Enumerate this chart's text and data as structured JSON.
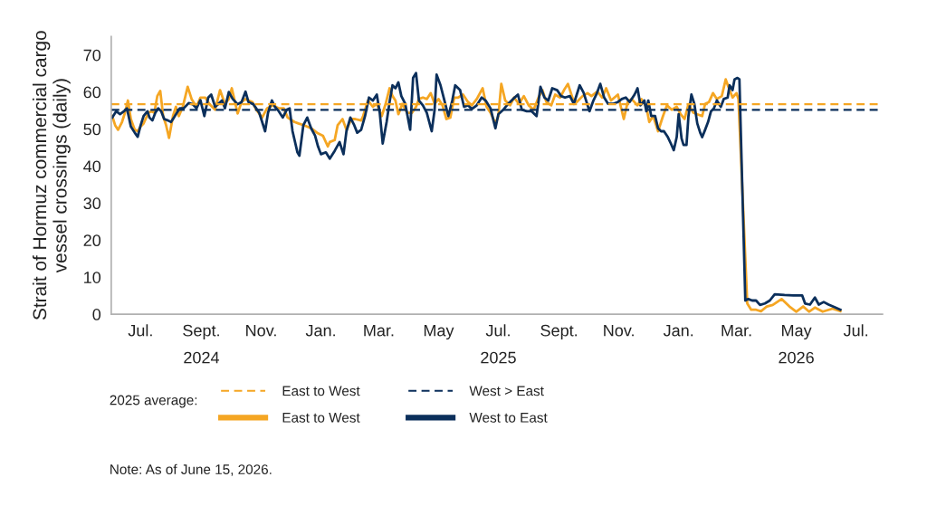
{
  "chart_data": {
    "type": "line",
    "ylabel": "Strait of Hormuz commercial cargo\nvessel crossings (daily)",
    "xlim": [
      "2024-06-01",
      "2026-07-28"
    ],
    "xticks": [
      {
        "value": "2024-07-01",
        "label": "Jul."
      },
      {
        "value": "2024-09-01",
        "label": "Sept.\n2024"
      },
      {
        "value": "2024-11-01",
        "label": "Nov."
      },
      {
        "value": "2025-01-01",
        "label": "Jan."
      },
      {
        "value": "2025-03-01",
        "label": "Mar."
      },
      {
        "value": "2025-05-01",
        "label": "May"
      },
      {
        "value": "2025-07-01",
        "label": "Jul.\n2025"
      },
      {
        "value": "2025-09-01",
        "label": "Sept."
      },
      {
        "value": "2025-11-01",
        "label": "Nov."
      },
      {
        "value": "2026-01-01",
        "label": "Jan."
      },
      {
        "value": "2026-03-01",
        "label": "Mar."
      },
      {
        "value": "2026-05-01",
        "label": "May\n2026"
      },
      {
        "value": "2026-07-01",
        "label": "Jul."
      }
    ],
    "ylim": [
      0,
      75
    ],
    "yticks": [
      0,
      10,
      20,
      30,
      40,
      50,
      60,
      70
    ],
    "line_style": "solid",
    "legend": "bottom",
    "legend_title": "2025 average:",
    "ref_lines": [
      {
        "axis": "y",
        "value": 56.7,
        "label": "East to West",
        "color": "#f5a623",
        "line_style": "dashed"
      },
      {
        "axis": "y",
        "value": 55.2,
        "label": "West > East",
        "color": "#0b2f5b",
        "line_style": "dashed"
      }
    ],
    "series": [
      {
        "name": "East to West",
        "color": "#f5a623",
        "x": [
          "2024-06-02",
          "2024-06-05",
          "2024-06-08",
          "2024-06-12",
          "2024-06-15",
          "2024-06-18",
          "2024-06-21",
          "2024-06-25",
          "2024-06-28",
          "2024-07-01",
          "2024-07-04",
          "2024-07-09",
          "2024-07-12",
          "2024-07-15",
          "2024-07-18",
          "2024-07-21",
          "2024-07-24",
          "2024-07-27",
          "2024-07-30",
          "2024-08-03",
          "2024-08-06",
          "2024-08-09",
          "2024-08-13",
          "2024-08-18",
          "2024-08-22",
          "2024-08-27",
          "2024-08-31",
          "2024-09-05",
          "2024-09-09",
          "2024-09-15",
          "2024-09-20",
          "2024-09-25",
          "2024-09-29",
          "2024-10-02",
          "2024-10-08",
          "2024-10-12",
          "2024-10-16",
          "2024-10-23",
          "2024-10-27",
          "2024-11-02",
          "2024-11-07",
          "2024-11-13",
          "2024-11-19",
          "2024-11-24",
          "2024-11-28",
          "2024-12-05",
          "2024-12-09",
          "2024-12-15",
          "2024-12-22",
          "2024-12-28",
          "2025-01-03",
          "2025-01-08",
          "2025-01-10",
          "2025-01-15",
          "2025-01-18",
          "2025-01-23",
          "2025-01-27",
          "2025-02-01",
          "2025-02-05",
          "2025-02-11",
          "2025-02-13",
          "2025-02-18",
          "2025-02-23",
          "2025-02-27",
          "2025-03-04",
          "2025-03-08",
          "2025-03-12",
          "2025-03-15",
          "2025-03-18",
          "2025-03-21",
          "2025-03-25",
          "2025-03-30",
          "2025-04-04",
          "2025-04-08",
          "2025-04-11",
          "2025-04-15",
          "2025-04-19",
          "2025-04-23",
          "2025-04-27",
          "2025-05-01",
          "2025-05-05",
          "2025-05-09",
          "2025-05-13",
          "2025-05-17",
          "2025-05-21",
          "2025-05-26",
          "2025-05-31",
          "2025-06-04",
          "2025-06-09",
          "2025-06-15",
          "2025-06-19",
          "2025-06-23",
          "2025-06-28",
          "2025-07-01",
          "2025-07-04",
          "2025-07-08",
          "2025-07-13",
          "2025-07-17",
          "2025-07-22",
          "2025-07-27",
          "2025-08-01",
          "2025-08-06",
          "2025-08-11",
          "2025-08-15",
          "2025-08-19",
          "2025-08-24",
          "2025-08-28",
          "2025-09-02",
          "2025-09-06",
          "2025-09-10",
          "2025-09-15",
          "2025-09-19",
          "2025-09-25",
          "2025-09-30",
          "2025-10-04",
          "2025-10-10",
          "2025-10-15",
          "2025-10-19",
          "2025-10-24",
          "2025-10-31",
          "2025-11-06",
          "2025-11-10",
          "2025-11-14",
          "2025-11-20",
          "2025-11-24",
          "2025-11-29",
          "2025-12-02",
          "2025-12-06",
          "2025-12-11",
          "2025-12-16",
          "2025-12-20",
          "2025-12-25",
          "2025-12-30",
          "2026-01-03",
          "2026-01-07",
          "2026-01-11",
          "2026-01-16",
          "2026-01-20",
          "2026-01-25",
          "2026-01-28",
          "2026-02-01",
          "2026-02-05",
          "2026-02-09",
          "2026-02-14",
          "2026-02-18",
          "2026-02-22",
          "2026-02-25",
          "2026-03-01",
          "2026-03-03",
          "2026-03-12",
          "2026-03-16",
          "2026-03-21",
          "2026-03-26",
          "2026-04-01",
          "2026-04-07",
          "2026-04-16",
          "2026-04-24",
          "2026-05-01",
          "2026-05-08",
          "2026-05-14",
          "2026-05-20",
          "2026-05-28",
          "2026-06-07",
          "2026-06-15"
        ],
        "values": [
          53.5,
          51,
          49.8,
          51.9,
          54.4,
          57.7,
          52.7,
          49.8,
          49.4,
          50.7,
          51.5,
          54.4,
          54.8,
          54.4,
          58.9,
          60.3,
          53.5,
          51,
          47.6,
          53.5,
          56,
          53.5,
          56,
          61.4,
          58.1,
          56,
          58.5,
          58.5,
          56.8,
          55.2,
          60.5,
          56.8,
          58.1,
          61,
          54.2,
          57.3,
          58.1,
          57.3,
          55.2,
          53.1,
          55.6,
          56.4,
          55.6,
          55.6,
          53.1,
          51.9,
          51.5,
          51,
          50.2,
          49,
          48.2,
          45.3,
          46.5,
          47,
          51,
          52.7,
          49.8,
          52.7,
          52.7,
          52.3,
          53.5,
          57.7,
          56,
          56.8,
          53.5,
          56.8,
          61,
          58.9,
          57.7,
          54,
          56.8,
          54.4,
          54.4,
          56,
          58.1,
          58.5,
          58.1,
          59.7,
          56.8,
          58.1,
          56.4,
          52.7,
          53.1,
          58.5,
          58.5,
          59.3,
          57.3,
          56.4,
          58.1,
          61,
          56,
          54.4,
          51.5,
          53.5,
          62.2,
          57.7,
          56.4,
          58.5,
          56.8,
          58.9,
          56.4,
          55.2,
          58.5,
          60.5,
          57.3,
          56.4,
          59.3,
          58.5,
          60.5,
          62.2,
          58.1,
          57.3,
          58.9,
          59.7,
          58.9,
          60.1,
          58.5,
          61,
          57.7,
          59.3,
          52.7,
          57.3,
          58.1,
          56.4,
          58.1,
          56,
          51.9,
          53.5,
          49.4,
          53.5,
          56.4,
          55.2,
          56,
          54,
          52.7,
          56.7,
          54.4,
          54,
          53.5,
          56.8,
          57.3,
          59.7,
          58.1,
          58.9,
          63.4,
          60.5,
          58.5,
          59.7,
          58.1,
          2.9,
          1.2,
          1.2,
          0.8,
          2.1,
          2.5,
          4.1,
          2.1,
          0.7,
          2.1,
          0.7,
          1.8,
          0.7,
          1.5,
          0.8
        ]
      },
      {
        "name": "West to East",
        "color": "#0b2f5b",
        "x": [
          "2024-06-02",
          "2024-06-06",
          "2024-06-10",
          "2024-06-14",
          "2024-06-17",
          "2024-06-21",
          "2024-06-25",
          "2024-06-28",
          "2024-07-01",
          "2024-07-04",
          "2024-07-08",
          "2024-07-10",
          "2024-07-13",
          "2024-07-16",
          "2024-07-19",
          "2024-07-22",
          "2024-07-25",
          "2024-07-29",
          "2024-08-01",
          "2024-08-04",
          "2024-08-07",
          "2024-08-10",
          "2024-08-14",
          "2024-08-19",
          "2024-08-23",
          "2024-08-27",
          "2024-08-31",
          "2024-09-04",
          "2024-09-08",
          "2024-09-11",
          "2024-09-15",
          "2024-09-18",
          "2024-09-22",
          "2024-09-25",
          "2024-09-29",
          "2024-10-03",
          "2024-10-08",
          "2024-10-12",
          "2024-10-16",
          "2024-10-19",
          "2024-10-24",
          "2024-10-30",
          "2024-11-05",
          "2024-11-08",
          "2024-11-12",
          "2024-11-15",
          "2024-11-19",
          "2024-11-23",
          "2024-11-27",
          "2024-11-30",
          "2024-12-03",
          "2024-12-08",
          "2024-12-10",
          "2024-12-14",
          "2024-12-18",
          "2024-12-22",
          "2024-12-26",
          "2024-12-29",
          "2025-01-01",
          "2025-01-06",
          "2025-01-10",
          "2025-01-15",
          "2025-01-20",
          "2025-01-24",
          "2025-01-27",
          "2025-01-31",
          "2025-02-04",
          "2025-02-07",
          "2025-02-11",
          "2025-02-15",
          "2025-02-19",
          "2025-02-23",
          "2025-02-27",
          "2025-03-02",
          "2025-03-05",
          "2025-03-09",
          "2025-03-12",
          "2025-03-15",
          "2025-03-18",
          "2025-03-21",
          "2025-03-24",
          "2025-03-28",
          "2025-04-02",
          "2025-04-05",
          "2025-04-08",
          "2025-04-11",
          "2025-04-15",
          "2025-04-19",
          "2025-04-24",
          "2025-04-27",
          "2025-04-29",
          "2025-05-03",
          "2025-05-07",
          "2025-05-11",
          "2025-05-15",
          "2025-05-18",
          "2025-05-23",
          "2025-05-27",
          "2025-05-31",
          "2025-06-04",
          "2025-06-09",
          "2025-06-14",
          "2025-06-18",
          "2025-06-23",
          "2025-06-28",
          "2025-07-01",
          "2025-07-06",
          "2025-07-11",
          "2025-07-16",
          "2025-07-21",
          "2025-07-25",
          "2025-07-30",
          "2025-08-04",
          "2025-08-09",
          "2025-08-13",
          "2025-08-17",
          "2025-08-21",
          "2025-08-25",
          "2025-08-30",
          "2025-09-03",
          "2025-09-07",
          "2025-09-12",
          "2025-09-16",
          "2025-09-22",
          "2025-09-26",
          "2025-10-02",
          "2025-10-06",
          "2025-10-09",
          "2025-10-13",
          "2025-10-17",
          "2025-10-21",
          "2025-10-26",
          "2025-10-31",
          "2025-11-04",
          "2025-11-08",
          "2025-11-12",
          "2025-11-17",
          "2025-11-20",
          "2025-11-23",
          "2025-11-27",
          "2025-11-29",
          "2025-12-01",
          "2025-12-04",
          "2025-12-08",
          "2025-12-11",
          "2025-12-14",
          "2025-12-17",
          "2025-12-21",
          "2025-12-24",
          "2025-12-27",
          "2025-12-30",
          "2026-01-01",
          "2026-01-04",
          "2026-01-06",
          "2026-01-09",
          "2026-01-11",
          "2026-01-14",
          "2026-01-17",
          "2026-01-20",
          "2026-01-23",
          "2026-01-25",
          "2026-01-28",
          "2026-01-31",
          "2026-02-03",
          "2026-02-06",
          "2026-02-09",
          "2026-02-13",
          "2026-02-16",
          "2026-02-20",
          "2026-02-22",
          "2026-02-25",
          "2026-02-27",
          "2026-03-02",
          "2026-03-04",
          "2026-03-10",
          "2026-03-13",
          "2026-03-17",
          "2026-03-21",
          "2026-03-25",
          "2026-03-30",
          "2026-04-04",
          "2026-04-09",
          "2026-04-19",
          "2026-04-28",
          "2026-05-07",
          "2026-05-10",
          "2026-05-15",
          "2026-05-20",
          "2026-05-24",
          "2026-05-29",
          "2026-06-03",
          "2026-06-10",
          "2026-06-15"
        ],
        "values": [
          53.1,
          54.8,
          54,
          54.8,
          55.6,
          50.7,
          49,
          47.9,
          51,
          53.5,
          54.8,
          53.1,
          52.3,
          54.4,
          55.6,
          54.8,
          52.7,
          52.3,
          51.9,
          53.1,
          54.4,
          55.6,
          55.6,
          57,
          56.7,
          55.6,
          57.8,
          53.5,
          58.5,
          59.3,
          56,
          56.7,
          57.7,
          55.6,
          60,
          58.1,
          56.7,
          57.3,
          60.1,
          57.3,
          56.7,
          54.4,
          49.4,
          54.4,
          57.7,
          56,
          54.8,
          53.1,
          55.2,
          55.6,
          49.4,
          43.7,
          42.8,
          51,
          53.1,
          50.2,
          48.2,
          45.3,
          43.2,
          43.7,
          42,
          44.1,
          46.5,
          43.2,
          49.4,
          53.1,
          51,
          49,
          49.8,
          53.5,
          58.5,
          57.7,
          59.3,
          54.4,
          46.1,
          51.9,
          57.3,
          61.8,
          61,
          62.6,
          58.9,
          56.8,
          49.8,
          63.8,
          65.1,
          57.7,
          56.4,
          54.4,
          49.4,
          55.2,
          64.7,
          61.8,
          57.7,
          53.5,
          57.7,
          61.8,
          60.5,
          56,
          56.4,
          55.4,
          56.4,
          58.5,
          57.7,
          55.6,
          50.2,
          54,
          55.2,
          56.8,
          58.1,
          59.3,
          55.2,
          54.8,
          54.8,
          53.5,
          61.4,
          58.5,
          57.7,
          61,
          60.5,
          58.9,
          58.5,
          58.9,
          56.8,
          61.8,
          59.8,
          54.8,
          57.7,
          59.3,
          62.2,
          58.5,
          56.8,
          56.8,
          57.3,
          58.1,
          58.5,
          57.3,
          59.3,
          61,
          56.4,
          57.7,
          54.8,
          57.7,
          53.5,
          53.5,
          50.2,
          49.4,
          49.4,
          47.8,
          46.1,
          44.3,
          47.8,
          54,
          47.4,
          45.7,
          45.7,
          53.5,
          59.3,
          56.8,
          51.5,
          49,
          47.8,
          49.8,
          51.9,
          54.8,
          55.6,
          57.7,
          56,
          58.1,
          58.5,
          61.8,
          60.5,
          63.4,
          63.8,
          63.4,
          3.7,
          4.1,
          3.7,
          3.7,
          2.5,
          2.9,
          3.7,
          5.4,
          5.2,
          5.1,
          5.1,
          2.9,
          2.6,
          4.5,
          2.6,
          3.3,
          2.6,
          1.8,
          1.2
        ]
      }
    ],
    "annotations": [
      "Note: As of June 15, 2026."
    ]
  }
}
